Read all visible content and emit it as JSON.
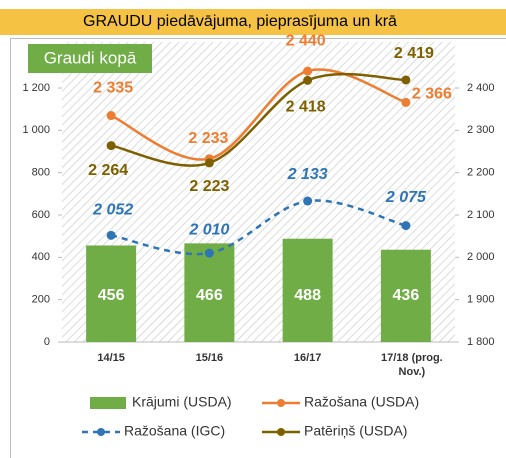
{
  "header": {
    "title": "GRAUDU piedāvājuma, pieprasījuma un krā"
  },
  "chart_data": {
    "type": "bar",
    "title": "Graudi kopā",
    "categories": [
      "14/15",
      "15/16",
      "16/17",
      "17/18 (prog. Nov.)"
    ],
    "series": [
      {
        "name": "Krājumi (USDA)",
        "type": "bar",
        "color": "#70ad47",
        "values": [
          456,
          466,
          488,
          436
        ]
      },
      {
        "name": "Ražošana (USDA)",
        "type": "line",
        "axis": "y2",
        "color": "#ed7d31",
        "smooth": true,
        "values": [
          2335,
          2233,
          2440,
          2366
        ],
        "value_labels": [
          "2 335",
          "2 233",
          "2 440",
          "2 366"
        ]
      },
      {
        "name": "Ražošana (IGC)",
        "type": "line",
        "axis": "y2",
        "color": "#2e75b6",
        "dashed": true,
        "smooth": true,
        "values": [
          2052,
          2010,
          2133,
          2075
        ],
        "value_labels": [
          "2 052",
          "2 010",
          "2 133",
          "2 075"
        ]
      },
      {
        "name": "Patēriņš (USDA)",
        "type": "line",
        "axis": "y2",
        "color": "#7f6000",
        "smooth": true,
        "values": [
          2264,
          2223,
          2418,
          2419
        ],
        "value_labels": [
          "2 264",
          "2 223",
          "2 418",
          "2 419"
        ]
      }
    ],
    "ylim": [
      0,
      1200
    ],
    "yticks": [
      0,
      200,
      400,
      600,
      800,
      {
        "value": 1000,
        "label": "1 000"
      },
      {
        "value": 1200,
        "label": "1 200"
      }
    ],
    "y2lim": [
      1800,
      2400
    ],
    "y2ticks": [
      {
        "value": 1800,
        "label": "1 800"
      },
      {
        "value": 1900,
        "label": "1 900"
      },
      {
        "value": 2000,
        "label": "2 000"
      },
      {
        "value": 2100,
        "label": "2 100"
      },
      {
        "value": 2200,
        "label": "2 200"
      },
      {
        "value": 2300,
        "label": "2 300"
      },
      {
        "value": 2400,
        "label": "2 400"
      }
    ]
  }
}
